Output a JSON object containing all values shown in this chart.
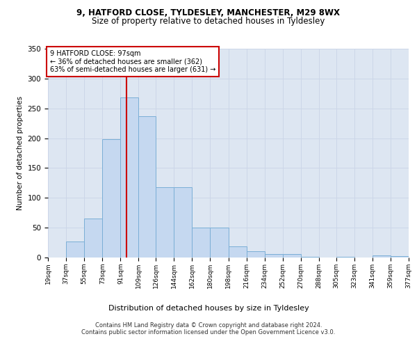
{
  "title1": "9, HATFORD CLOSE, TYLDESLEY, MANCHESTER, M29 8WX",
  "title2": "Size of property relative to detached houses in Tyldesley",
  "xlabel": "Distribution of detached houses by size in Tyldesley",
  "ylabel": "Number of detached properties",
  "bin_edges": [
    19,
    37,
    55,
    73,
    91,
    109,
    126,
    144,
    162,
    180,
    198,
    216,
    234,
    252,
    270,
    288,
    305,
    323,
    341,
    359,
    377
  ],
  "bar_values": [
    0,
    27,
    65,
    198,
    268,
    237,
    118,
    118,
    50,
    50,
    19,
    10,
    6,
    6,
    1,
    0,
    1,
    0,
    4,
    2
  ],
  "bar_color": "#c5d8f0",
  "bar_edge_color": "#7aaed6",
  "property_sqm": 97,
  "vline_color": "#cc0000",
  "annotation_text": "9 HATFORD CLOSE: 97sqm\n← 36% of detached houses are smaller (362)\n63% of semi-detached houses are larger (631) →",
  "annotation_box_color": "#ffffff",
  "annotation_box_edge": "#cc0000",
  "footer": "Contains HM Land Registry data © Crown copyright and database right 2024.\nContains public sector information licensed under the Open Government Licence v3.0.",
  "ylim": [
    0,
    350
  ],
  "grid_color": "#ccd6e8",
  "background_color": "#dde6f2",
  "title1_fontsize": 8.5,
  "title2_fontsize": 8.5,
  "ylabel_fontsize": 7.5,
  "xlabel_fontsize": 8,
  "ytick_fontsize": 7.5,
  "xtick_fontsize": 6.5,
  "footer_fontsize": 6
}
